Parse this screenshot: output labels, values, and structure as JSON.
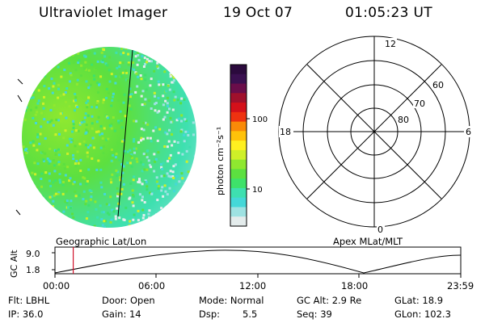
{
  "header": {
    "instrument": "Ultraviolet Imager",
    "date": "19 Oct 07",
    "time": "01:05:23 UT"
  },
  "colorbar": {
    "unit_label": "photon cm⁻²s⁻¹",
    "ticks": [
      "100",
      "10"
    ],
    "colors": [
      "#2b0a3d",
      "#3a1050",
      "#6a0d4a",
      "#a0102c",
      "#d4101a",
      "#ee3210",
      "#f98a08",
      "#ffc20a",
      "#fff020",
      "#cef028",
      "#8fe830",
      "#5ce040",
      "#3ee26a",
      "#3ee0b0",
      "#44d8d8",
      "#9ee2e2",
      "#e4ecec"
    ]
  },
  "polar_plot": {
    "mlt_labels": {
      "top": "12",
      "left": "18",
      "right": "6",
      "bottom": "0"
    },
    "mlat_labels": [
      "60",
      "70",
      "80"
    ]
  },
  "timeline": {
    "title_left": "Geographic Lat/Lon",
    "title_right": "Apex MLat/MLT",
    "axis_label": "GC Alt",
    "y_ticks": [
      "9.0",
      "1.8"
    ],
    "x_ticks": [
      "00:00",
      "06:00",
      "12:00",
      "18:00",
      "23:59"
    ],
    "current_time_fraction": 0.045
  },
  "status": {
    "flt": "Flt: LBHL",
    "ip": "IP: 36.0",
    "door": "Door: Open",
    "gain": "Gain: 14",
    "mode": "Mode: Normal",
    "dsp_label": "Dsp:",
    "dsp_value": "5.5",
    "gc_alt": "GC Alt: 2.9 Re",
    "seq": "Seq: 39",
    "glat": "GLat:  18.9",
    "glon": "GLon: 102.3"
  }
}
